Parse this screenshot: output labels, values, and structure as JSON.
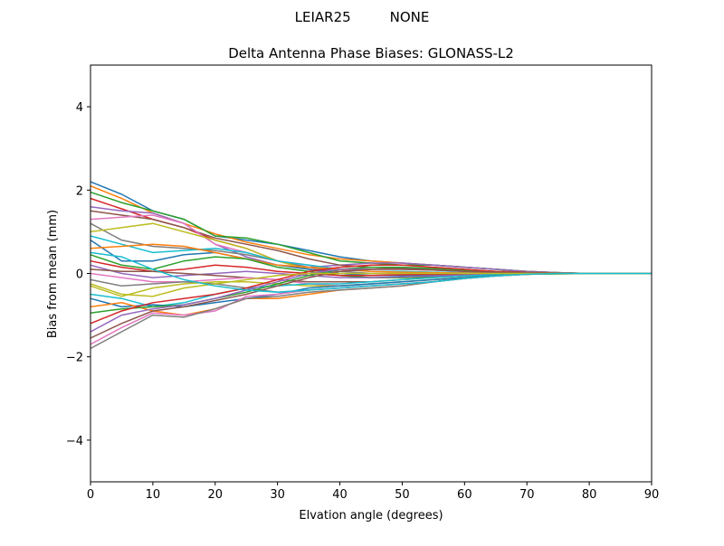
{
  "chart_data": {
    "type": "line",
    "suptitle": "LEIAR25         NONE",
    "title": "Delta Antenna Phase Biases: GLONASS-L2",
    "xlabel": "Elvation angle (degrees)",
    "ylabel": "Bias from mean (mm)",
    "xlim": [
      0,
      90
    ],
    "ylim": [
      -5,
      5
    ],
    "xticks": [
      0,
      10,
      20,
      30,
      40,
      50,
      60,
      70,
      80,
      90
    ],
    "yticks": [
      -4,
      -2,
      0,
      2,
      4
    ],
    "grid": false,
    "legend": "none",
    "colors": [
      "#1f77b4",
      "#ff7f0e",
      "#2ca02c",
      "#d62728",
      "#9467bd",
      "#8c564b",
      "#e377c2",
      "#7f7f7f",
      "#bcbd22",
      "#17becf"
    ],
    "x": [
      0,
      5,
      10,
      15,
      20,
      25,
      30,
      35,
      40,
      45,
      50,
      55,
      60,
      65,
      70,
      75,
      80,
      85,
      90
    ],
    "series": [
      {
        "values": [
          2.2,
          1.9,
          1.5,
          1.3,
          0.9,
          0.8,
          0.7,
          0.55,
          0.4,
          0.3,
          0.25,
          0.2,
          0.15,
          0.1,
          0.05,
          0.02,
          0,
          0,
          0
        ]
      },
      {
        "values": [
          2.1,
          1.8,
          1.45,
          1.2,
          0.95,
          0.75,
          0.6,
          0.45,
          0.35,
          0.3,
          0.25,
          0.2,
          0.15,
          0.1,
          0.05,
          0.02,
          0,
          0,
          0
        ]
      },
      {
        "values": [
          1.95,
          1.7,
          1.5,
          1.3,
          0.9,
          0.85,
          0.7,
          0.5,
          0.3,
          0.25,
          0.2,
          0.2,
          0.15,
          0.1,
          0.05,
          0.02,
          0,
          0,
          0
        ]
      },
      {
        "values": [
          1.8,
          1.55,
          1.3,
          1.1,
          0.8,
          0.6,
          0.3,
          0.1,
          0.05,
          0.1,
          0.12,
          0.1,
          0.08,
          0.05,
          0.03,
          0.01,
          0,
          0,
          0
        ]
      },
      {
        "values": [
          1.6,
          1.5,
          1.45,
          1.2,
          0.7,
          0.4,
          0.2,
          0.15,
          0.2,
          0.25,
          0.25,
          0.2,
          0.15,
          0.1,
          0.05,
          0.02,
          0,
          0,
          0
        ]
      },
      {
        "values": [
          1.5,
          1.4,
          1.3,
          1.1,
          0.85,
          0.7,
          0.55,
          0.35,
          0.2,
          0.15,
          0.12,
          0.1,
          0.08,
          0.05,
          0.03,
          0.01,
          0,
          0,
          0
        ]
      },
      {
        "values": [
          1.3,
          1.35,
          1.4,
          1.2,
          0.7,
          0.5,
          0.3,
          0.2,
          0.1,
          0.1,
          0.1,
          0.08,
          0.06,
          0.04,
          0.02,
          0.01,
          0,
          0,
          0
        ]
      },
      {
        "values": [
          1.2,
          0.8,
          0.65,
          0.6,
          0.55,
          0.45,
          0.3,
          0.15,
          0.05,
          0,
          0,
          0,
          0,
          0,
          0,
          0,
          0,
          0,
          0
        ]
      },
      {
        "values": [
          1.0,
          1.1,
          1.2,
          1.0,
          0.8,
          0.6,
          0.3,
          0.1,
          -0.05,
          -0.1,
          -0.1,
          -0.08,
          -0.06,
          -0.04,
          -0.02,
          -0.01,
          0,
          0,
          0
        ]
      },
      {
        "values": [
          0.9,
          0.7,
          0.5,
          0.55,
          0.6,
          0.5,
          0.3,
          0.2,
          0.1,
          0.05,
          0.05,
          0.03,
          0.02,
          0.01,
          0,
          0,
          0,
          0,
          0
        ]
      },
      {
        "values": [
          0.8,
          0.3,
          0.3,
          0.45,
          0.5,
          0.35,
          0.2,
          0.1,
          0.0,
          -0.05,
          -0.05,
          -0.04,
          -0.03,
          -0.02,
          -0.01,
          0,
          0,
          0,
          0
        ]
      },
      {
        "values": [
          0.6,
          0.65,
          0.7,
          0.65,
          0.5,
          0.35,
          0.2,
          0.15,
          0.1,
          0.05,
          0.03,
          0.02,
          0.01,
          0,
          0,
          0,
          0,
          0,
          0
        ]
      },
      {
        "values": [
          0.45,
          0.2,
          0.1,
          0.3,
          0.4,
          0.35,
          0.15,
          0.05,
          -0.05,
          -0.1,
          -0.1,
          -0.08,
          -0.05,
          -0.03,
          -0.02,
          -0.01,
          0,
          0,
          0
        ]
      },
      {
        "values": [
          0.3,
          0.15,
          0.05,
          0.1,
          0.2,
          0.15,
          0.05,
          0,
          -0.05,
          -0.05,
          -0.03,
          -0.02,
          -0.01,
          0,
          0,
          0,
          0,
          0,
          0
        ]
      },
      {
        "values": [
          0.2,
          0.0,
          -0.1,
          -0.05,
          0.0,
          0.05,
          0.0,
          -0.05,
          -0.1,
          -0.1,
          -0.08,
          -0.06,
          -0.04,
          -0.02,
          -0.01,
          0,
          0,
          0,
          0
        ]
      },
      {
        "values": [
          0.1,
          0.05,
          0.05,
          0.0,
          -0.05,
          -0.1,
          -0.15,
          -0.2,
          -0.2,
          -0.2,
          -0.15,
          -0.1,
          -0.06,
          -0.03,
          -0.01,
          0,
          0,
          0,
          0
        ]
      },
      {
        "values": [
          0.0,
          -0.1,
          -0.2,
          -0.2,
          -0.15,
          -0.1,
          -0.15,
          -0.25,
          -0.3,
          -0.25,
          -0.2,
          -0.15,
          -0.1,
          -0.05,
          -0.02,
          0,
          0,
          0,
          0
        ]
      },
      {
        "values": [
          -0.15,
          -0.3,
          -0.25,
          -0.2,
          -0.25,
          -0.35,
          -0.45,
          -0.4,
          -0.35,
          -0.3,
          -0.25,
          -0.2,
          -0.12,
          -0.06,
          -0.02,
          0,
          0,
          0,
          0
        ]
      },
      {
        "values": [
          -0.3,
          -0.55,
          -0.35,
          -0.25,
          -0.2,
          -0.2,
          -0.25,
          -0.3,
          -0.3,
          -0.25,
          -0.2,
          -0.15,
          -0.1,
          -0.05,
          -0.02,
          0,
          0,
          0,
          0
        ]
      },
      {
        "values": [
          -0.5,
          -0.6,
          -0.8,
          -0.7,
          -0.5,
          -0.35,
          -0.3,
          -0.25,
          -0.25,
          -0.2,
          -0.15,
          -0.1,
          -0.06,
          -0.03,
          -0.01,
          0,
          0,
          0,
          0
        ]
      },
      {
        "values": [
          -0.6,
          -0.8,
          -0.75,
          -0.8,
          -0.7,
          -0.6,
          -0.5,
          -0.35,
          -0.3,
          -0.25,
          -0.2,
          -0.15,
          -0.1,
          -0.05,
          -0.02,
          0,
          0,
          0,
          0
        ]
      },
      {
        "values": [
          -0.8,
          -0.7,
          -0.9,
          -1.0,
          -0.85,
          -0.6,
          -0.6,
          -0.5,
          -0.4,
          -0.35,
          -0.3,
          -0.2,
          -0.12,
          -0.06,
          -0.02,
          0,
          0,
          0,
          0
        ]
      },
      {
        "values": [
          -0.95,
          -0.85,
          -0.8,
          -0.75,
          -0.6,
          -0.45,
          -0.25,
          -0.05,
          0.1,
          0.15,
          0.15,
          0.12,
          0.08,
          0.05,
          0.02,
          0.01,
          0,
          0,
          0
        ]
      },
      {
        "values": [
          -1.2,
          -0.9,
          -0.7,
          -0.6,
          -0.5,
          -0.35,
          -0.15,
          0.05,
          0.15,
          0.2,
          0.2,
          0.15,
          0.1,
          0.05,
          0.02,
          0.01,
          0,
          0,
          0
        ]
      },
      {
        "values": [
          -1.4,
          -1.0,
          -0.85,
          -0.75,
          -0.6,
          -0.4,
          -0.2,
          0.0,
          0.1,
          0.1,
          0.1,
          0.08,
          0.05,
          0.03,
          0.01,
          0,
          0,
          0,
          0
        ]
      },
      {
        "values": [
          -1.55,
          -1.2,
          -0.9,
          -0.8,
          -0.65,
          -0.5,
          -0.3,
          -0.1,
          0.05,
          0.1,
          0.1,
          0.08,
          0.05,
          0.03,
          0.01,
          0,
          0,
          0,
          0
        ]
      },
      {
        "values": [
          -1.7,
          -1.3,
          -0.95,
          -1.0,
          -0.9,
          -0.55,
          -0.5,
          -0.4,
          -0.35,
          -0.3,
          -0.25,
          -0.2,
          -0.12,
          -0.06,
          -0.02,
          0,
          0,
          0,
          0
        ]
      },
      {
        "values": [
          -1.8,
          -1.4,
          -1.0,
          -1.05,
          -0.85,
          -0.6,
          -0.55,
          -0.45,
          -0.4,
          -0.35,
          -0.3,
          -0.2,
          -0.12,
          -0.06,
          -0.02,
          0,
          0,
          0,
          0
        ]
      },
      {
        "values": [
          -0.25,
          -0.5,
          -0.55,
          -0.35,
          -0.25,
          -0.15,
          -0.05,
          0.0,
          0.0,
          0.0,
          0.0,
          0,
          0,
          0,
          0,
          0,
          0,
          0,
          0
        ]
      },
      {
        "values": [
          0.5,
          0.4,
          0.1,
          -0.15,
          -0.3,
          -0.4,
          -0.45,
          -0.4,
          -0.35,
          -0.3,
          -0.25,
          -0.2,
          -0.12,
          -0.06,
          -0.02,
          0,
          0,
          0,
          0
        ]
      }
    ]
  }
}
